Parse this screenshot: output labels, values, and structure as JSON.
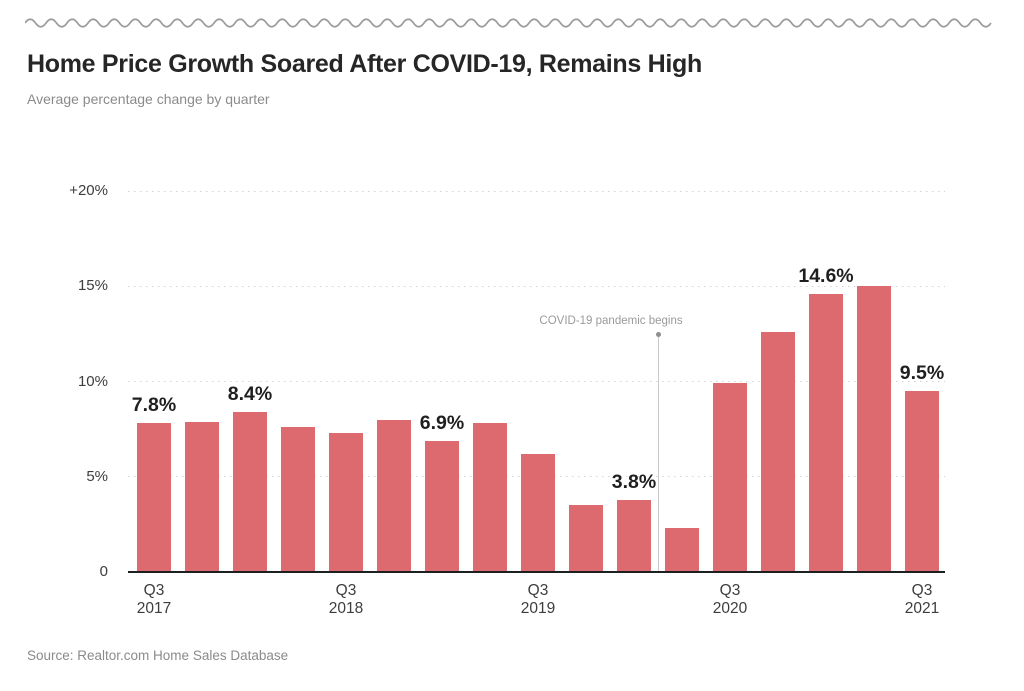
{
  "header": {
    "title": "Home Price Growth Soared After COVID-19, Remains High",
    "subtitle": "Average percentage change by quarter"
  },
  "footer": {
    "source": "Source: Realtor.com Home Sales Database"
  },
  "colors": {
    "bar": "#dd6a6f",
    "grid_dots": "#d2d2d2",
    "axis": "#1f1f1f",
    "wave": "#9b9b9b",
    "annotation_line": "#c9c9c9",
    "annotation_dot": "#8f8f8f"
  },
  "chart_data": {
    "type": "bar",
    "title": "Home Price Growth Soared After COVID-19, Remains High",
    "subtitle": "Average percentage change by quarter",
    "xlabel": "",
    "ylabel": "Average percentage change",
    "ylim": [
      0,
      21
    ],
    "grid": "dotted-horizontal",
    "categories": [
      "Q3 2017",
      "Q4 2017",
      "Q1 2018",
      "Q2 2018",
      "Q3 2018",
      "Q4 2018",
      "Q1 2019",
      "Q2 2019",
      "Q3 2019",
      "Q4 2019",
      "Q1 2020",
      "Q2 2020",
      "Q3 2020",
      "Q4 2020",
      "Q1 2021",
      "Q2 2021",
      "Q3 2021"
    ],
    "values": [
      7.8,
      7.9,
      8.4,
      7.6,
      7.3,
      8.0,
      6.9,
      7.8,
      6.2,
      3.5,
      3.8,
      2.3,
      9.9,
      12.6,
      14.6,
      15.0,
      9.5
    ],
    "bar_labels": [
      {
        "index": 0,
        "text": "7.8%"
      },
      {
        "index": 2,
        "text": "8.4%"
      },
      {
        "index": 6,
        "text": "6.9%"
      },
      {
        "index": 10,
        "text": "3.8%"
      },
      {
        "index": 14,
        "text": "14.6%"
      },
      {
        "index": 16,
        "text": "9.5%"
      }
    ],
    "y_ticks": [
      {
        "value": 0,
        "label": "0"
      },
      {
        "value": 5,
        "label": "5%"
      },
      {
        "value": 10,
        "label": "10%"
      },
      {
        "value": 15,
        "label": "15%"
      },
      {
        "value": 20,
        "label": "+20%"
      }
    ],
    "x_ticks": [
      {
        "index": 0,
        "line1": "Q3",
        "line2": "2017"
      },
      {
        "index": 4,
        "line1": "Q3",
        "line2": "2018"
      },
      {
        "index": 8,
        "line1": "Q3",
        "line2": "2019"
      },
      {
        "index": 12,
        "line1": "Q3",
        "line2": "2020"
      },
      {
        "index": 16,
        "line1": "Q3",
        "line2": "2021"
      }
    ],
    "annotation": {
      "text": "COVID-19 pandemic begins",
      "line_after_index": 10,
      "line_top_value": 12.4
    },
    "legend": "none"
  }
}
